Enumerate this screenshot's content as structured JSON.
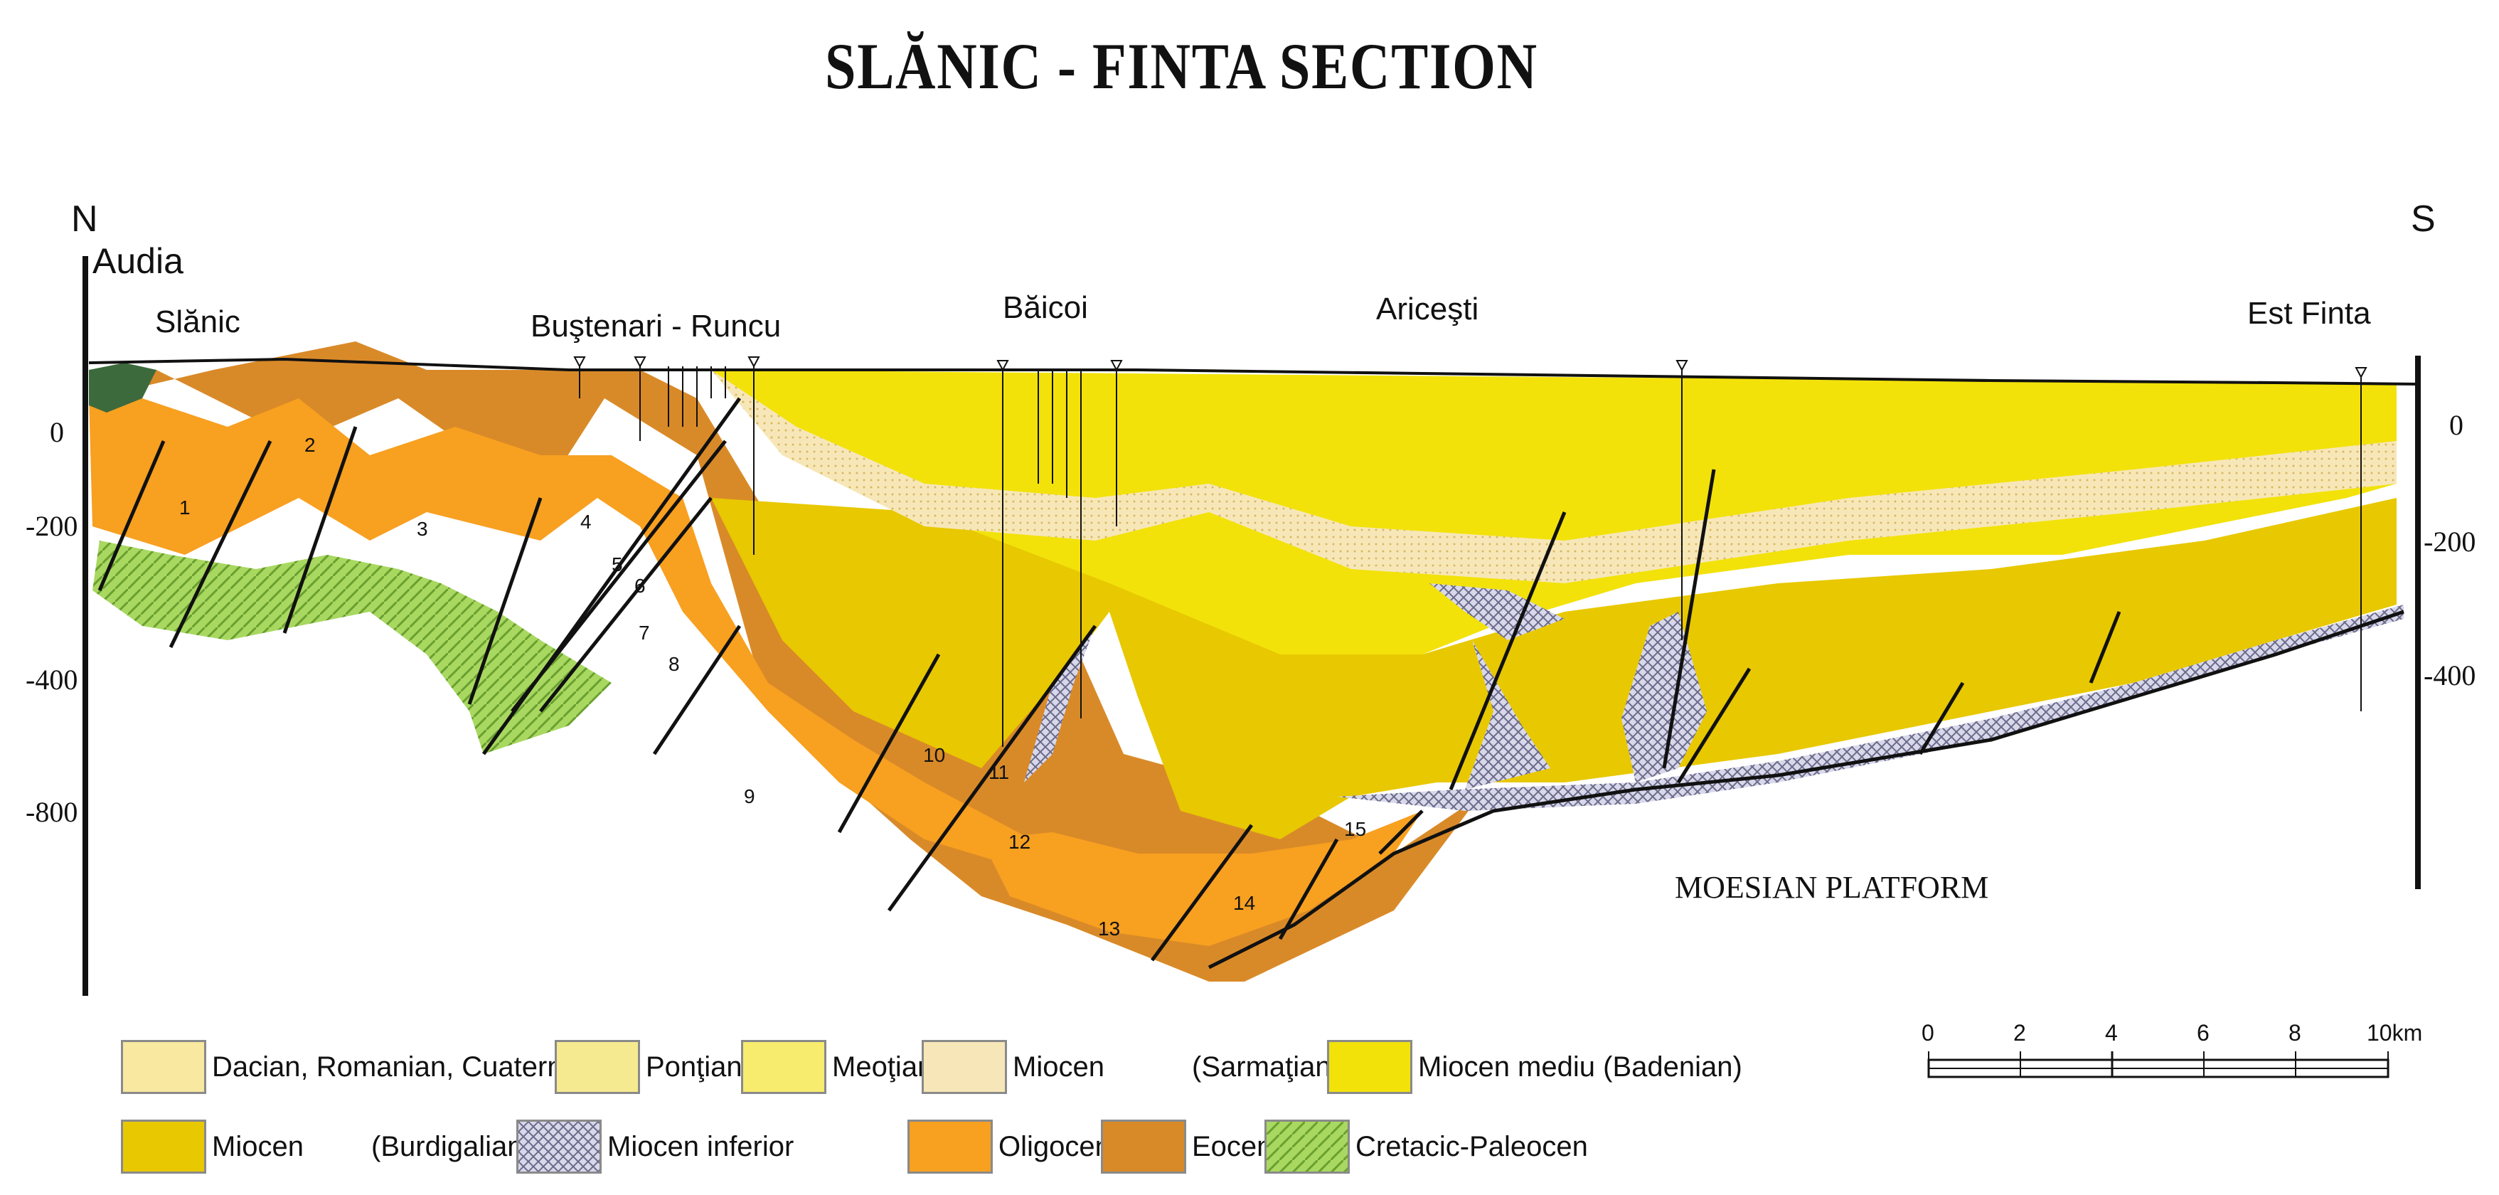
{
  "title": "SLĂNIC - FINTA SECTION",
  "compass": {
    "north": "N",
    "south": "S"
  },
  "localities": {
    "audia": "Audia",
    "slanic": "Slănic",
    "bustenari": "Buştenari - Runcu",
    "baicoi": "Băicoi",
    "aricesti": "Ariceşti",
    "est_finta": "Est Finta"
  },
  "depth_left": [
    "0",
    "-200",
    "-400",
    "-800"
  ],
  "depth_right": [
    "0",
    "-200",
    "-400"
  ],
  "platform_label": "MOESIAN PLATFORM",
  "block_numbers": [
    "1",
    "2",
    "3",
    "4",
    "5",
    "6",
    "7",
    "8",
    "9",
    "10",
    "11",
    "12",
    "13",
    "14",
    "15"
  ],
  "scale_bar": {
    "ticks": [
      "0",
      "2",
      "4",
      "6",
      "8",
      "10km"
    ]
  },
  "legend": [
    {
      "label": "Dacian, Romanian, Cuaternar",
      "color": "#f8e8a0"
    },
    {
      "label": "Ponţian",
      "color": "#f6ea90"
    },
    {
      "label": "Meoţian",
      "color": "#f7ec6e"
    },
    {
      "label": "Miocen",
      "color": "#f7e7b8"
    },
    {
      "label": "(Sarmaţian)",
      "color": ""
    },
    {
      "label": "Miocen mediu (Badenian)",
      "color": "#f2e20a"
    },
    {
      "label": "Miocen",
      "color": "#e8c800"
    },
    {
      "label": "(Burdigalian)",
      "color": ""
    },
    {
      "label": "Miocen inferior",
      "color": "#c8c8e0"
    },
    {
      "label": "Oligocen",
      "color": "#f8a020"
    },
    {
      "label": "Eocen",
      "color": "#d98a28"
    },
    {
      "label": "Cretacic-Paleocen",
      "color": "#a8d860"
    }
  ]
}
